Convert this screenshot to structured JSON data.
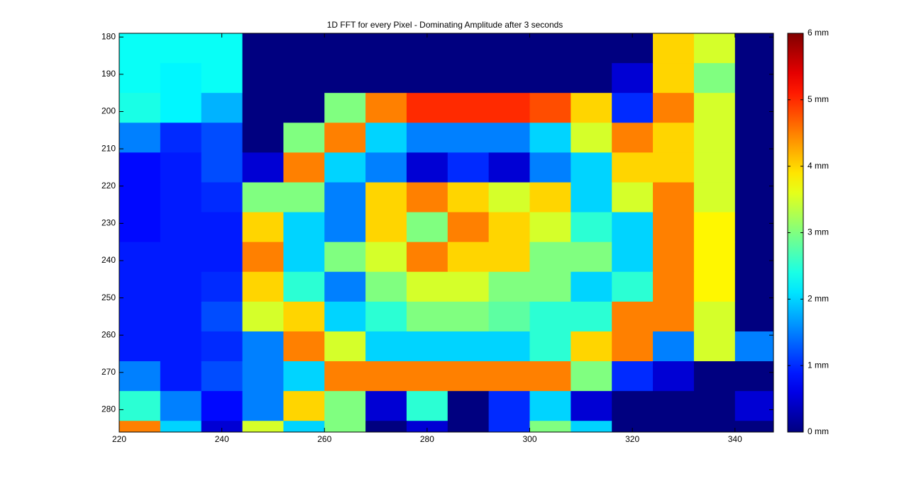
{
  "chart_data": {
    "type": "heatmap",
    "title": "1D FFT for every Pixel - Dominating Amplitude after 3 seconds",
    "x_edges": [
      220,
      228,
      236,
      244,
      252,
      260,
      268,
      276,
      284,
      292,
      300,
      308,
      316,
      324,
      332,
      340,
      347.5
    ],
    "y_edges": [
      179,
      187,
      195,
      203,
      211,
      219,
      227,
      235,
      243,
      251,
      259,
      267,
      275,
      283,
      286
    ],
    "values": [
      [
        2.3,
        2.3,
        2.3,
        0,
        0,
        0,
        0,
        0,
        0,
        0,
        0,
        0,
        0,
        4,
        3.5,
        0
      ],
      [
        2.3,
        2.2,
        2.3,
        0,
        0,
        0,
        0,
        0,
        0,
        0,
        0,
        0,
        0.5,
        4,
        3,
        0
      ],
      [
        2.4,
        2.2,
        1.8,
        0,
        0,
        3,
        4.5,
        5,
        5,
        5,
        4.8,
        4,
        1,
        4.5,
        3.5,
        0
      ],
      [
        1.5,
        1,
        1.2,
        0,
        3,
        4.5,
        2,
        1.5,
        1.5,
        1.5,
        2,
        3.5,
        4.5,
        4,
        3.5,
        0
      ],
      [
        0.8,
        0.9,
        1.2,
        0.5,
        4.5,
        2,
        1.5,
        0.5,
        1,
        0.5,
        1.5,
        2,
        4,
        4,
        3.5,
        0
      ],
      [
        0.8,
        0.9,
        1,
        3,
        3,
        1.5,
        4,
        4.5,
        4,
        3.5,
        4,
        2,
        3.5,
        4.5,
        3.5,
        0
      ],
      [
        0.8,
        0.9,
        0.9,
        4,
        2,
        1.5,
        4,
        3,
        4.5,
        4,
        3.5,
        2.5,
        2,
        4.5,
        3.8,
        0
      ],
      [
        0.9,
        0.9,
        0.9,
        4.5,
        2,
        3,
        3.5,
        4.5,
        4,
        4,
        3,
        3,
        2,
        4.5,
        3.8,
        0
      ],
      [
        0.9,
        0.9,
        1,
        4,
        2.5,
        1.5,
        3,
        3.5,
        3.5,
        3,
        3,
        2,
        2.5,
        4.5,
        3.8,
        0
      ],
      [
        0.9,
        0.9,
        1.2,
        3.5,
        4,
        2,
        2.5,
        3,
        3,
        2.8,
        2.5,
        2.5,
        4.5,
        4.5,
        3.5,
        0
      ],
      [
        0.9,
        0.9,
        1,
        1.5,
        4.5,
        3.5,
        2,
        2,
        2,
        2,
        2.5,
        4,
        4.5,
        1.5,
        3.5,
        1.5
      ],
      [
        1.5,
        0.9,
        1.2,
        1.5,
        2,
        4.5,
        4.5,
        4.5,
        4.5,
        4.5,
        4.5,
        3,
        1,
        0.5,
        0,
        0
      ],
      [
        2.5,
        1.5,
        0.8,
        1.5,
        4,
        3,
        0.5,
        2.5,
        0,
        1,
        2,
        0.5,
        0,
        0,
        0,
        0.5
      ],
      [
        4.5,
        2,
        0.5,
        3.5,
        2,
        3,
        0,
        0.5,
        0,
        1,
        3,
        2,
        0,
        0,
        0,
        0
      ]
    ],
    "xlim": [
      220,
      347.5
    ],
    "ylim": [
      179,
      286
    ],
    "y_reversed": true,
    "xticks": [
      220,
      240,
      260,
      280,
      300,
      320,
      340
    ],
    "yticks": [
      180,
      190,
      200,
      210,
      220,
      230,
      240,
      250,
      260,
      270,
      280
    ],
    "colormap": "jet",
    "clim": [
      0,
      6
    ],
    "colorbar_ticks": [
      {
        "value": 0,
        "label": "0 mm"
      },
      {
        "value": 1,
        "label": "1 mm"
      },
      {
        "value": 2,
        "label": "2 mm"
      },
      {
        "value": 3,
        "label": "3 mm"
      },
      {
        "value": 4,
        "label": "4 mm"
      },
      {
        "value": 5,
        "label": "5 mm"
      },
      {
        "value": 6,
        "label": "6 mm"
      }
    ]
  }
}
